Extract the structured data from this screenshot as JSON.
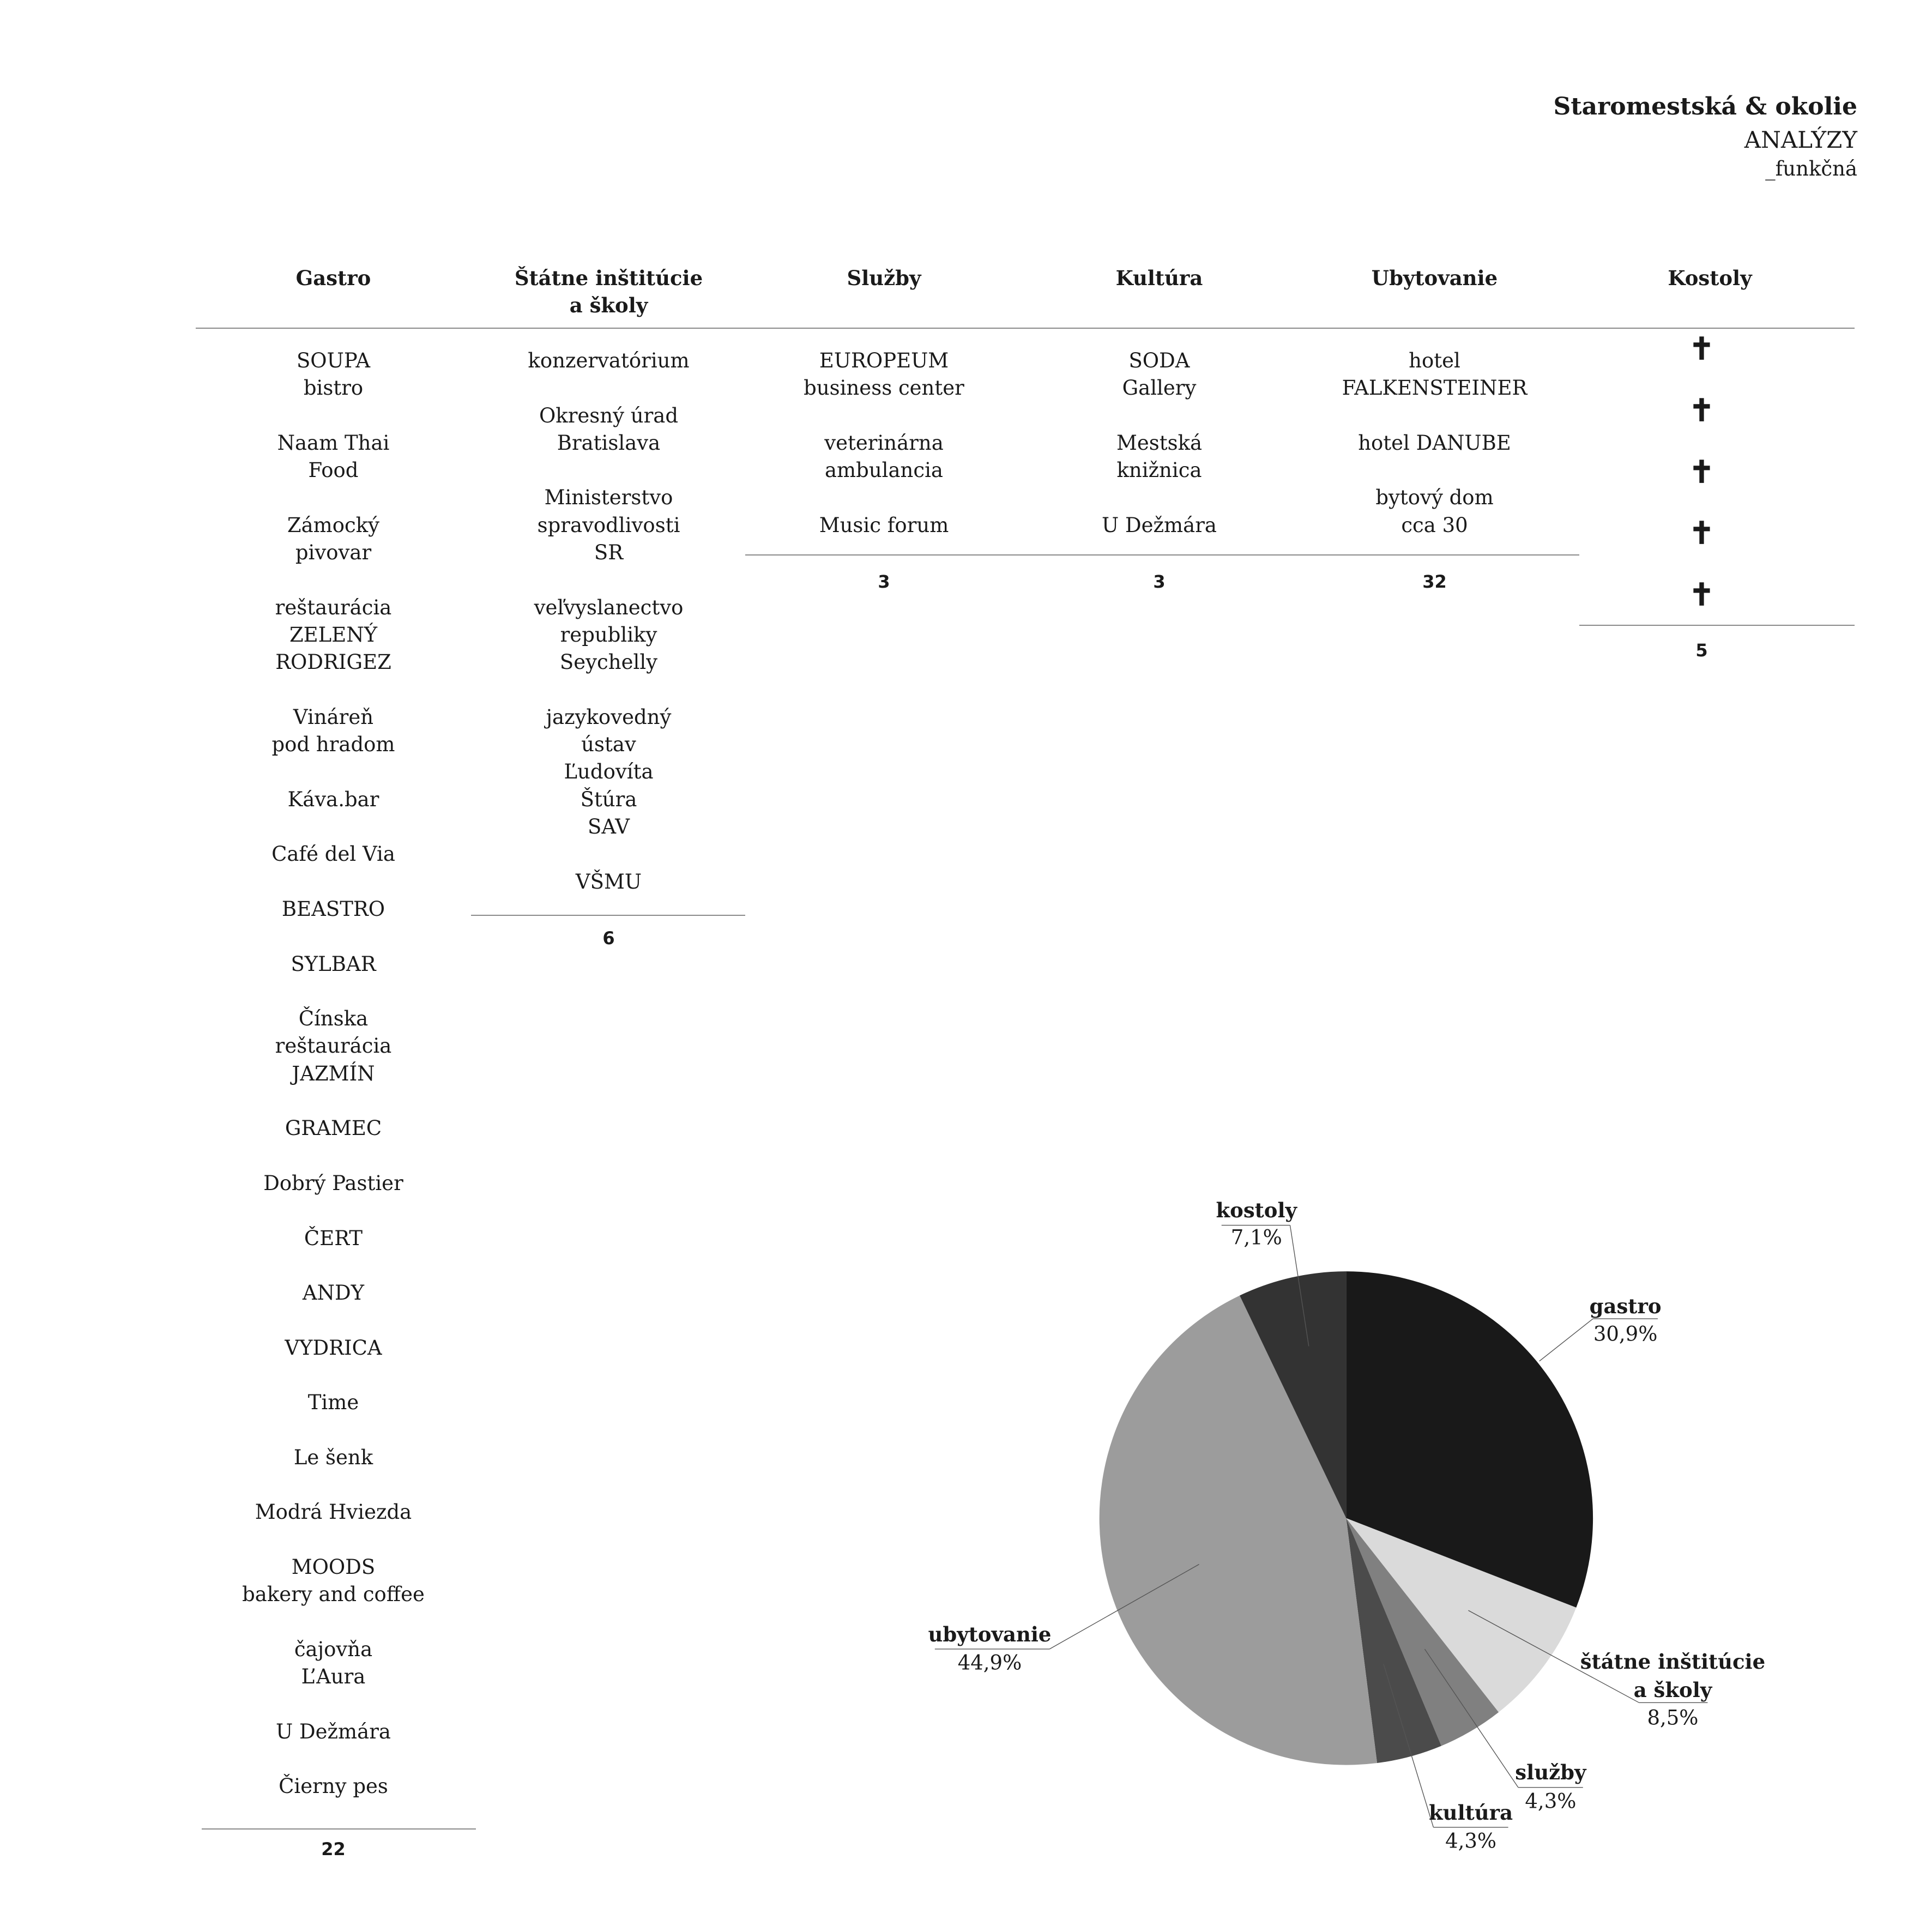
{
  "header": {
    "title": "Staromestská & okolie",
    "subtitle": "ANALÝZY",
    "section": "_funkčná"
  },
  "columns": [
    {
      "title": "Gastro",
      "items": [
        "SOUPA\nbistro",
        "Naam Thai\nFood",
        "Zámocký\npivovar",
        "reštaurácia\nZELENÝ\nRODRIGEZ",
        "Vináreň\npod hradom",
        "Káva.bar",
        "Café del Via",
        "BEASTRO",
        "SYLBAR",
        "Čínska\nreštaurácia\nJAZMÍN",
        "GRAMEC",
        "Dobrý Pastier",
        "ČERT",
        "ANDY",
        "VYDRICA",
        "Time",
        "Le šenk",
        "Modrá Hviezda",
        "MOODS\nbakery and coffee",
        "čajovňa\nL’Aura",
        "U Dežmára",
        "Čierny pes"
      ],
      "count": "22"
    },
    {
      "title": "Štátne inštitúcie\na školy",
      "items": [
        "konzervatórium",
        "Okresný úrad\nBratislava",
        "Ministerstvo\nspravodlivosti\nSR",
        "veľvyslanectvo\nrepubliky\nSeychelly",
        "jazykovedný\nústav\nĽudovíta\nŠtúra\nSAV",
        "VŠMU"
      ],
      "count": "6"
    },
    {
      "title": "Služby",
      "items": [
        "EUROPEUM\nbusiness center",
        "veterinárna\nambulancia",
        "Music forum"
      ],
      "count": "3"
    },
    {
      "title": "Kultúra",
      "items": [
        "SODA\nGallery",
        "Mestská\nknižnica",
        "U Dežmára"
      ],
      "count": "3"
    },
    {
      "title": "Ubytovanie",
      "items": [
        "hotel\nFALKENSTEINER",
        "hotel DANUBE",
        "bytový dom\ncca 30"
      ],
      "count": "32"
    },
    {
      "title": "Kostoly",
      "items": [
        "✝",
        "✝",
        "✝",
        "✝",
        "✝"
      ],
      "count": "5",
      "icon": "cross-icon"
    }
  ],
  "chart_data": {
    "type": "pie",
    "start": "top",
    "direction": "clockwise",
    "slices": [
      {
        "label": "gastro",
        "label_line2": "",
        "value": 30.9,
        "display": "30,9%",
        "color": "#191919"
      },
      {
        "label": "štátne inštitúcie",
        "label_line2": "a školy",
        "value": 8.5,
        "display": "8,5%",
        "color": "#dadada"
      },
      {
        "label": "služby",
        "label_line2": "",
        "value": 4.3,
        "display": "4,3%",
        "color": "#808080"
      },
      {
        "label": "kultúra",
        "label_line2": "",
        "value": 4.3,
        "display": "4,3%",
        "color": "#4b4b4b"
      },
      {
        "label": "ubytovanie",
        "label_line2": "",
        "value": 44.9,
        "display": "44,9%",
        "color": "#9c9c9c"
      },
      {
        "label": "kostoly",
        "label_line2": "",
        "value": 7.1,
        "display": "7,1%",
        "color": "#333333"
      }
    ]
  }
}
